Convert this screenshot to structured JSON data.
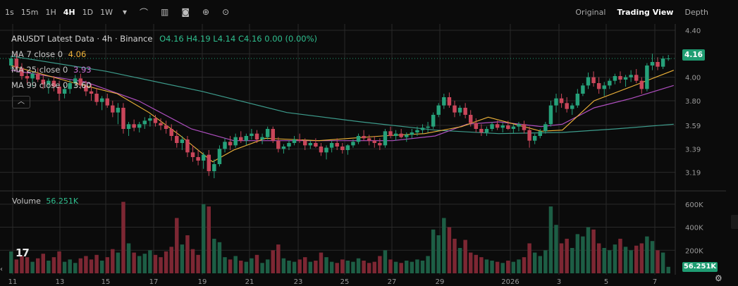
{
  "toolbar": {
    "timeframes": [
      {
        "label": "1s",
        "active": false
      },
      {
        "label": "15m",
        "active": false
      },
      {
        "label": "1H",
        "active": false
      },
      {
        "label": "4H",
        "active": true
      },
      {
        "label": "1D",
        "active": false
      },
      {
        "label": "1W",
        "active": false
      }
    ],
    "more_icon": "chevron-down-icon",
    "tools": [
      "indicators-icon",
      "chart-type-icon",
      "camera-icon",
      "plus-circle-icon",
      "settings-circle-icon"
    ],
    "views": [
      {
        "label": "Original",
        "active": false
      },
      {
        "label": "Trading View",
        "active": true
      },
      {
        "label": "Depth",
        "active": false
      }
    ]
  },
  "legend": {
    "title": "ARUSDT Latest Data · 4h · Binance",
    "ohlc": "O4.16 H4.19 L4.14 C4.16 0.00 (0.00%)",
    "ma7_label": "MA 7 close 0",
    "ma7_value": "4.06",
    "ma25_label": "MA 25 close 0",
    "ma25_value": "3.93",
    "ma99_label": "MA 99 close 0",
    "ma99_value": "3.60",
    "collapse_icon": "chevron-up-icon"
  },
  "volume_legend": {
    "label": "Volume",
    "value": "56.251K"
  },
  "price_tag": "4.16",
  "volume_tag": "56.251K",
  "colors": {
    "up": "#1f8a65",
    "down": "#b33a4c",
    "vol_up": "#1d5e45",
    "vol_down": "#7d2733",
    "ma7": "#f0b43a",
    "ma25": "#b04fc0",
    "ma99": "#3d9c8c",
    "grid": "#2a2a2a"
  },
  "chart_data": {
    "type": "candlestick",
    "price_axis": [
      "4.40",
      "4.20",
      "4.00",
      "3.80",
      "3.59",
      "3.39",
      "3.19"
    ],
    "volume_axis": [
      "600K",
      "400K",
      "200K"
    ],
    "x_ticks": [
      "11",
      "13",
      "15",
      "17",
      "19",
      "21",
      "23",
      "25",
      "27",
      "29",
      "2026",
      "3",
      "5",
      "7"
    ],
    "ylim": [
      3.05,
      4.43
    ],
    "vol_max": 660000,
    "candles": [
      [
        4.1,
        4.18,
        4.07,
        4.16,
        190000
      ],
      [
        4.16,
        4.2,
        4.06,
        4.08,
        120000
      ],
      [
        4.08,
        4.12,
        3.98,
        4.01,
        150000
      ],
      [
        4.01,
        4.06,
        3.95,
        3.99,
        140000
      ],
      [
        3.99,
        4.05,
        3.92,
        4.03,
        100000
      ],
      [
        4.03,
        4.08,
        3.96,
        3.98,
        130000
      ],
      [
        3.98,
        4.02,
        3.9,
        3.94,
        170000
      ],
      [
        3.94,
        3.99,
        3.86,
        3.97,
        110000
      ],
      [
        3.97,
        4.01,
        3.88,
        3.92,
        140000
      ],
      [
        3.92,
        3.97,
        3.8,
        3.86,
        190000
      ],
      [
        3.86,
        3.93,
        3.82,
        3.9,
        100000
      ],
      [
        3.9,
        3.98,
        3.86,
        3.95,
        120000
      ],
      [
        3.95,
        4.02,
        3.92,
        3.99,
        90000
      ],
      [
        3.99,
        4.03,
        3.9,
        3.93,
        130000
      ],
      [
        3.93,
        3.97,
        3.84,
        3.88,
        150000
      ],
      [
        3.88,
        3.94,
        3.8,
        3.86,
        120000
      ],
      [
        3.86,
        3.91,
        3.76,
        3.79,
        160000
      ],
      [
        3.79,
        3.84,
        3.72,
        3.82,
        110000
      ],
      [
        3.82,
        3.86,
        3.74,
        3.76,
        140000
      ],
      [
        3.76,
        3.8,
        3.66,
        3.7,
        210000
      ],
      [
        3.7,
        3.78,
        3.6,
        3.74,
        180000
      ],
      [
        3.74,
        3.78,
        3.52,
        3.56,
        620000
      ],
      [
        3.56,
        3.62,
        3.5,
        3.6,
        260000
      ],
      [
        3.6,
        3.64,
        3.54,
        3.57,
        180000
      ],
      [
        3.57,
        3.62,
        3.53,
        3.6,
        150000
      ],
      [
        3.6,
        3.66,
        3.56,
        3.63,
        170000
      ],
      [
        3.63,
        3.68,
        3.58,
        3.65,
        200000
      ],
      [
        3.65,
        3.68,
        3.58,
        3.61,
        160000
      ],
      [
        3.61,
        3.65,
        3.55,
        3.59,
        140000
      ],
      [
        3.59,
        3.63,
        3.52,
        3.56,
        190000
      ],
      [
        3.56,
        3.6,
        3.46,
        3.5,
        230000
      ],
      [
        3.5,
        3.55,
        3.4,
        3.44,
        480000
      ],
      [
        3.44,
        3.5,
        3.38,
        3.47,
        250000
      ],
      [
        3.47,
        3.5,
        3.32,
        3.36,
        330000
      ],
      [
        3.36,
        3.42,
        3.28,
        3.32,
        210000
      ],
      [
        3.32,
        3.38,
        3.25,
        3.29,
        160000
      ],
      [
        3.29,
        3.36,
        3.22,
        3.34,
        600000
      ],
      [
        3.34,
        3.38,
        3.16,
        3.2,
        580000
      ],
      [
        3.2,
        3.3,
        3.14,
        3.26,
        300000
      ],
      [
        3.26,
        3.42,
        3.24,
        3.39,
        270000
      ],
      [
        3.39,
        3.48,
        3.36,
        3.45,
        140000
      ],
      [
        3.45,
        3.5,
        3.38,
        3.42,
        120000
      ],
      [
        3.42,
        3.52,
        3.4,
        3.49,
        150000
      ],
      [
        3.49,
        3.54,
        3.44,
        3.46,
        110000
      ],
      [
        3.46,
        3.52,
        3.42,
        3.5,
        100000
      ],
      [
        3.5,
        3.56,
        3.47,
        3.52,
        130000
      ],
      [
        3.52,
        3.55,
        3.44,
        3.47,
        160000
      ],
      [
        3.47,
        3.52,
        3.43,
        3.49,
        90000
      ],
      [
        3.49,
        3.58,
        3.47,
        3.56,
        120000
      ],
      [
        3.56,
        3.58,
        3.44,
        3.46,
        200000
      ],
      [
        3.46,
        3.49,
        3.36,
        3.39,
        250000
      ],
      [
        3.39,
        3.43,
        3.35,
        3.41,
        130000
      ],
      [
        3.41,
        3.46,
        3.38,
        3.44,
        110000
      ],
      [
        3.44,
        3.5,
        3.42,
        3.47,
        100000
      ],
      [
        3.47,
        3.52,
        3.44,
        3.46,
        120000
      ],
      [
        3.46,
        3.48,
        3.38,
        3.42,
        140000
      ],
      [
        3.42,
        3.46,
        3.39,
        3.44,
        100000
      ],
      [
        3.44,
        3.48,
        3.4,
        3.41,
        110000
      ],
      [
        3.41,
        3.44,
        3.33,
        3.36,
        180000
      ],
      [
        3.36,
        3.42,
        3.3,
        3.4,
        140000
      ],
      [
        3.4,
        3.46,
        3.36,
        3.44,
        100000
      ],
      [
        3.44,
        3.48,
        3.38,
        3.41,
        90000
      ],
      [
        3.41,
        3.44,
        3.35,
        3.38,
        120000
      ],
      [
        3.38,
        3.43,
        3.34,
        3.42,
        110000
      ],
      [
        3.42,
        3.47,
        3.4,
        3.45,
        100000
      ],
      [
        3.45,
        3.52,
        3.43,
        3.5,
        130000
      ],
      [
        3.5,
        3.55,
        3.46,
        3.48,
        110000
      ],
      [
        3.48,
        3.51,
        3.42,
        3.46,
        90000
      ],
      [
        3.46,
        3.5,
        3.4,
        3.44,
        100000
      ],
      [
        3.44,
        3.48,
        3.38,
        3.42,
        150000
      ],
      [
        3.42,
        3.56,
        3.4,
        3.54,
        200000
      ],
      [
        3.54,
        3.58,
        3.48,
        3.5,
        120000
      ],
      [
        3.5,
        3.55,
        3.46,
        3.52,
        100000
      ],
      [
        3.52,
        3.56,
        3.48,
        3.49,
        90000
      ],
      [
        3.49,
        3.53,
        3.45,
        3.51,
        110000
      ],
      [
        3.51,
        3.56,
        3.48,
        3.53,
        100000
      ],
      [
        3.53,
        3.58,
        3.5,
        3.55,
        120000
      ],
      [
        3.55,
        3.6,
        3.52,
        3.57,
        110000
      ],
      [
        3.57,
        3.62,
        3.53,
        3.58,
        150000
      ],
      [
        3.58,
        3.7,
        3.56,
        3.68,
        380000
      ],
      [
        3.68,
        3.78,
        3.66,
        3.76,
        330000
      ],
      [
        3.76,
        3.86,
        3.73,
        3.83,
        480000
      ],
      [
        3.83,
        3.87,
        3.74,
        3.76,
        400000
      ],
      [
        3.76,
        3.8,
        3.66,
        3.7,
        300000
      ],
      [
        3.7,
        3.76,
        3.67,
        3.74,
        220000
      ],
      [
        3.74,
        3.78,
        3.65,
        3.68,
        290000
      ],
      [
        3.68,
        3.72,
        3.58,
        3.61,
        180000
      ],
      [
        3.61,
        3.65,
        3.53,
        3.56,
        160000
      ],
      [
        3.56,
        3.6,
        3.5,
        3.53,
        140000
      ],
      [
        3.53,
        3.58,
        3.5,
        3.56,
        120000
      ],
      [
        3.56,
        3.62,
        3.54,
        3.6,
        110000
      ],
      [
        3.6,
        3.63,
        3.55,
        3.57,
        100000
      ],
      [
        3.57,
        3.61,
        3.53,
        3.59,
        90000
      ],
      [
        3.59,
        3.63,
        3.55,
        3.56,
        110000
      ],
      [
        3.56,
        3.6,
        3.52,
        3.58,
        100000
      ],
      [
        3.58,
        3.62,
        3.54,
        3.6,
        120000
      ],
      [
        3.6,
        3.63,
        3.52,
        3.55,
        140000
      ],
      [
        3.55,
        3.58,
        3.4,
        3.46,
        260000
      ],
      [
        3.46,
        3.52,
        3.43,
        3.5,
        180000
      ],
      [
        3.5,
        3.56,
        3.48,
        3.54,
        150000
      ],
      [
        3.54,
        3.62,
        3.52,
        3.6,
        200000
      ],
      [
        3.6,
        3.8,
        3.58,
        3.76,
        580000
      ],
      [
        3.76,
        3.86,
        3.7,
        3.82,
        420000
      ],
      [
        3.82,
        3.86,
        3.74,
        3.78,
        260000
      ],
      [
        3.78,
        3.83,
        3.7,
        3.73,
        300000
      ],
      [
        3.73,
        3.78,
        3.68,
        3.76,
        220000
      ],
      [
        3.76,
        3.9,
        3.74,
        3.86,
        340000
      ],
      [
        3.86,
        3.95,
        3.84,
        3.93,
        320000
      ],
      [
        3.93,
        4.04,
        3.9,
        4.0,
        400000
      ],
      [
        4.0,
        4.05,
        3.92,
        3.95,
        380000
      ],
      [
        3.95,
        4.0,
        3.86,
        3.9,
        260000
      ],
      [
        3.9,
        3.96,
        3.84,
        3.93,
        220000
      ],
      [
        3.93,
        3.99,
        3.9,
        3.97,
        200000
      ],
      [
        3.97,
        4.03,
        3.94,
        4.01,
        250000
      ],
      [
        4.01,
        4.05,
        3.95,
        3.98,
        300000
      ],
      [
        3.98,
        4.02,
        3.92,
        4.0,
        230000
      ],
      [
        4.0,
        4.06,
        3.96,
        4.02,
        200000
      ],
      [
        4.02,
        4.07,
        3.95,
        3.97,
        240000
      ],
      [
        3.97,
        4.0,
        3.86,
        3.9,
        260000
      ],
      [
        3.9,
        4.12,
        3.88,
        4.1,
        320000
      ],
      [
        4.1,
        4.2,
        4.06,
        4.13,
        280000
      ],
      [
        4.13,
        4.17,
        4.06,
        4.09,
        200000
      ],
      [
        4.09,
        4.18,
        4.07,
        4.16,
        180000
      ],
      [
        4.16,
        4.19,
        4.14,
        4.16,
        56251
      ]
    ],
    "ma7": [
      [
        4.1,
        0
      ],
      [
        3.95,
        12
      ],
      [
        3.86,
        20
      ],
      [
        3.7,
        26
      ],
      [
        3.5,
        32
      ],
      [
        3.28,
        38
      ],
      [
        3.38,
        42
      ],
      [
        3.48,
        48
      ],
      [
        3.46,
        58
      ],
      [
        3.5,
        70
      ],
      [
        3.52,
        78
      ],
      [
        3.58,
        85
      ],
      [
        3.66,
        90
      ],
      [
        3.6,
        95
      ],
      [
        3.54,
        100
      ],
      [
        3.55,
        104
      ],
      [
        3.8,
        110
      ],
      [
        3.92,
        117
      ],
      [
        4.06,
        125
      ]
    ],
    "ma25": [
      [
        4.06,
        0
      ],
      [
        3.96,
        14
      ],
      [
        3.8,
        24
      ],
      [
        3.56,
        34
      ],
      [
        3.46,
        42
      ],
      [
        3.46,
        52
      ],
      [
        3.46,
        62
      ],
      [
        3.46,
        72
      ],
      [
        3.5,
        80
      ],
      [
        3.6,
        86
      ],
      [
        3.62,
        92
      ],
      [
        3.58,
        100
      ],
      [
        3.6,
        104
      ],
      [
        3.74,
        110
      ],
      [
        3.82,
        117
      ],
      [
        3.93,
        125
      ]
    ],
    "ma99": [
      [
        4.18,
        0
      ],
      [
        4.05,
        18
      ],
      [
        3.88,
        36
      ],
      [
        3.7,
        52
      ],
      [
        3.62,
        66
      ],
      [
        3.55,
        80
      ],
      [
        3.52,
        92
      ],
      [
        3.53,
        104
      ],
      [
        3.56,
        114
      ],
      [
        3.6,
        125
      ]
    ]
  }
}
